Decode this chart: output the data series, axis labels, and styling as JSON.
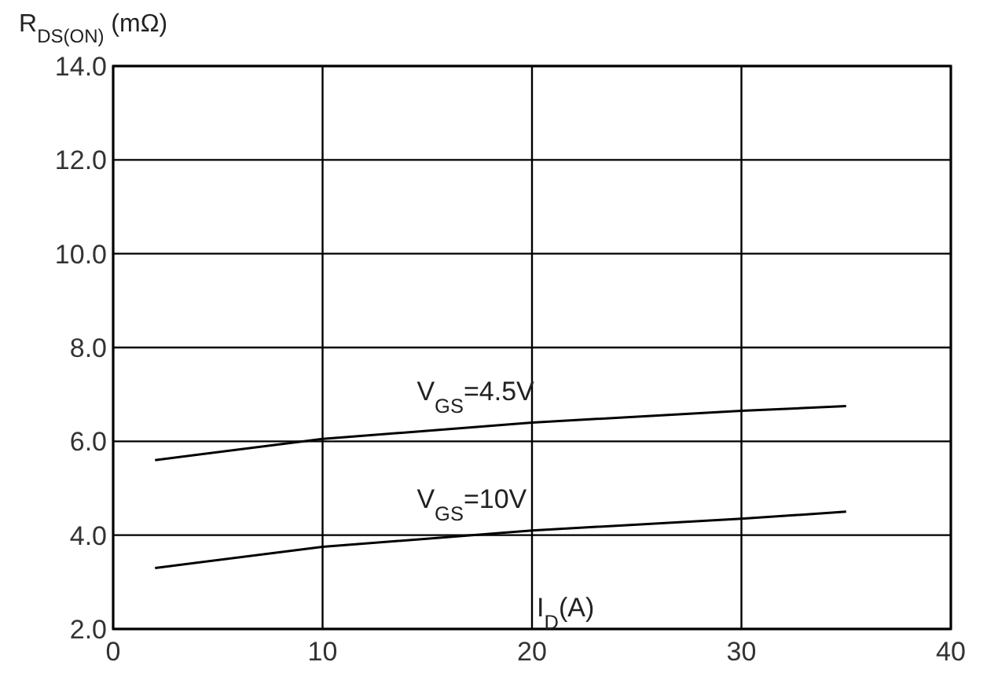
{
  "chart_data": {
    "type": "line",
    "xlabel": "I$_{D}$(A)",
    "ylabel": "R$_{DS(ON)}$ (mΩ)",
    "xlim": [
      0,
      40
    ],
    "xticks": [
      0,
      10,
      20,
      30,
      40
    ],
    "ylim": [
      2,
      14
    ],
    "yticks": [
      {
        "value": 2,
        "label": "2.0"
      },
      {
        "value": 4,
        "label": "4.0"
      },
      {
        "value": 6,
        "label": "6.0"
      },
      {
        "value": 8,
        "label": "8.0"
      },
      {
        "value": 10,
        "label": "10.0"
      },
      {
        "value": 12,
        "label": "12.0"
      },
      {
        "value": 14,
        "label": "14.0"
      }
    ],
    "grid": true,
    "legend": false,
    "marker": "none",
    "line_style": "solid",
    "series": [
      {
        "name": "V$_{GS}$=4.5V",
        "color": "#000000",
        "x": [
          2,
          10,
          20,
          30,
          35
        ],
        "values": [
          5.6,
          6.05,
          6.4,
          6.65,
          6.75
        ]
      },
      {
        "name": "V$_{GS}$=10V",
        "color": "#000000",
        "x": [
          2,
          10,
          20,
          30,
          35
        ],
        "values": [
          3.3,
          3.75,
          4.1,
          4.35,
          4.5
        ]
      }
    ]
  }
}
